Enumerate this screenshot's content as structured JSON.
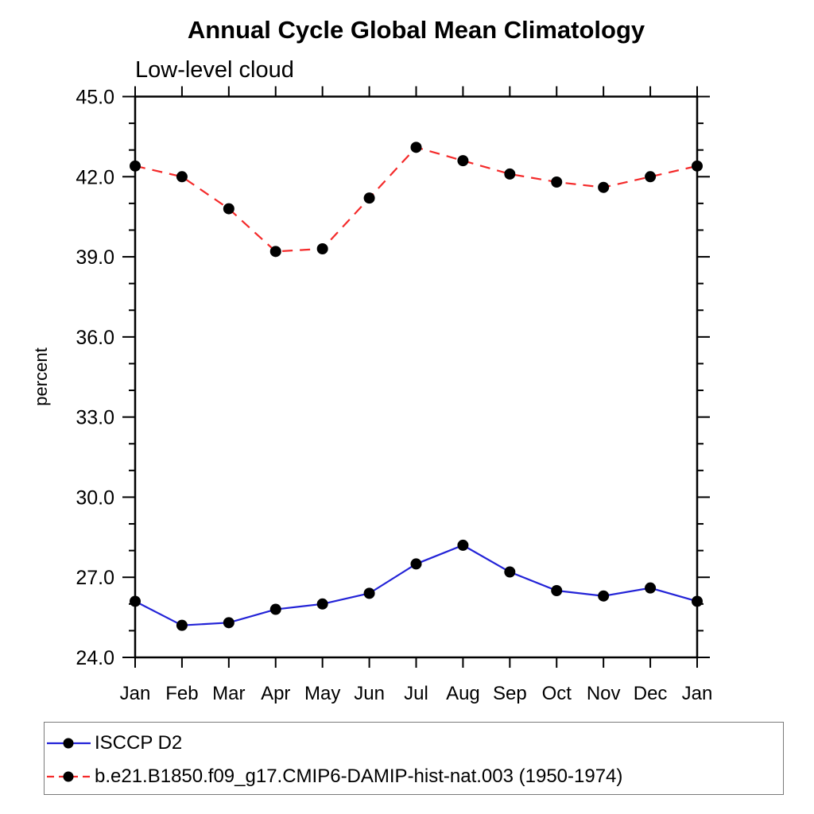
{
  "chart_data": {
    "type": "line",
    "title": "Annual Cycle Global Mean Climatology",
    "subtitle": "Low-level cloud",
    "ylabel": "percent",
    "xlabel": "",
    "x_categories": [
      "Jan",
      "Feb",
      "Mar",
      "Apr",
      "May",
      "Jun",
      "Jul",
      "Aug",
      "Sep",
      "Oct",
      "Nov",
      "Dec",
      "Jan"
    ],
    "ylim": [
      24.0,
      45.0
    ],
    "ytick_major": [
      24,
      27,
      30,
      33,
      36,
      39,
      42,
      45
    ],
    "ytick_labels": [
      "24.0",
      "27.0",
      "30.0",
      "33.0",
      "36.0",
      "39.0",
      "42.0",
      "45.0"
    ],
    "ytick_minor_step": 1,
    "grid": false,
    "legend_position": "bottom-left",
    "axis_color": "#000000",
    "series": [
      {
        "name": "ISCCP D2",
        "color": "#2323d7",
        "line_style": "solid",
        "marker": "filled-circle",
        "marker_color": "#000000",
        "values": [
          26.1,
          25.2,
          25.3,
          25.8,
          26.0,
          26.4,
          27.5,
          28.2,
          27.2,
          26.5,
          26.3,
          26.6,
          26.1
        ]
      },
      {
        "name": "b.e21.B1850.f09_g17.CMIP6-DAMIP-hist-nat.003 (1950-1974)",
        "color": "#f42a2a",
        "line_style": "dashed",
        "marker": "filled-circle",
        "marker_color": "#000000",
        "values": [
          42.4,
          42.0,
          40.8,
          39.2,
          39.3,
          41.2,
          43.1,
          42.6,
          42.1,
          41.8,
          41.6,
          42.0,
          42.4
        ]
      }
    ]
  }
}
